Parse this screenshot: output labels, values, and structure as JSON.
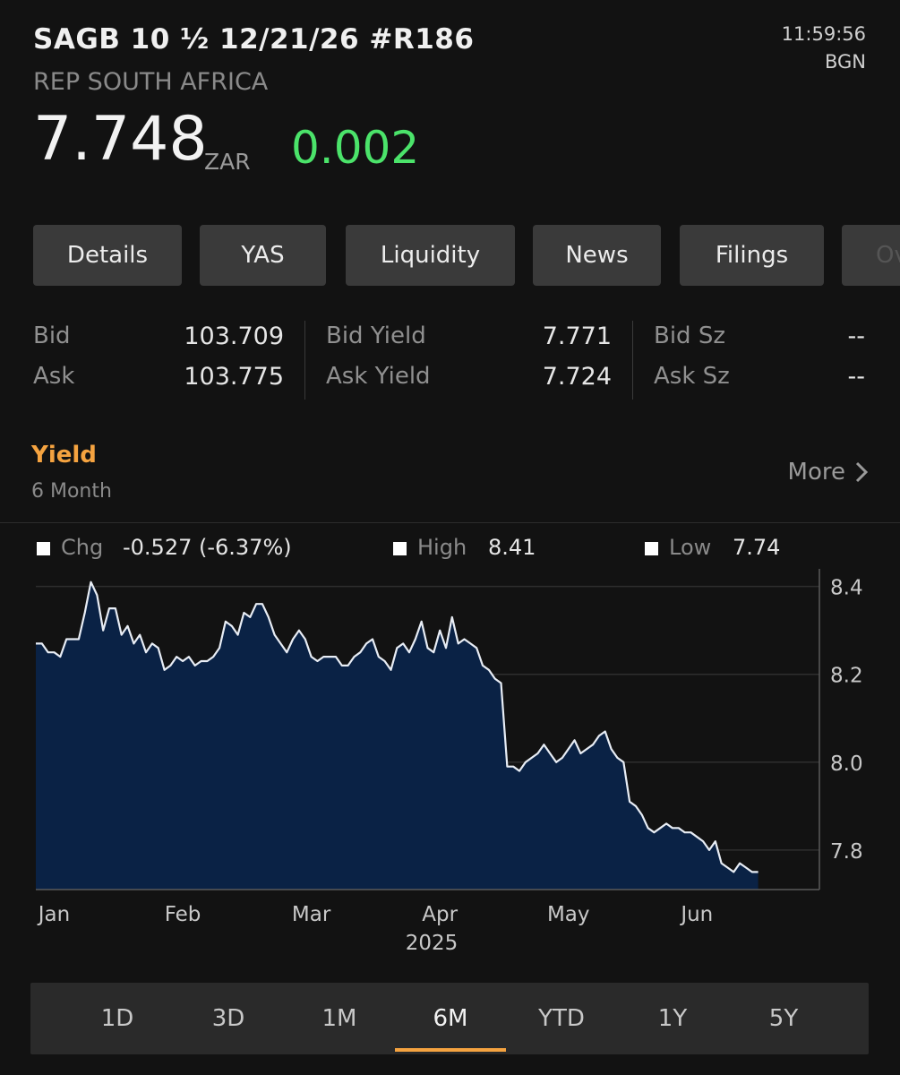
{
  "header": {
    "title": "SAGB 10 ½  12/21/26 #R186",
    "issuer": "REP SOUTH AFRICA",
    "time": "11:59:56",
    "source": "BGN",
    "price": "7.748",
    "currency": "ZAR",
    "change": "0.002",
    "change_color": "#4be36a"
  },
  "tabs": [
    {
      "label": "Details"
    },
    {
      "label": "YAS"
    },
    {
      "label": "Liquidity"
    },
    {
      "label": "News"
    },
    {
      "label": "Filings"
    },
    {
      "label": "Ov"
    }
  ],
  "quotes": {
    "bid_label": "Bid",
    "bid": "103.709",
    "ask_label": "Ask",
    "ask": "103.775",
    "bid_yield_label": "Bid Yield",
    "bid_yield": "7.771",
    "ask_yield_label": "Ask Yield",
    "ask_yield": "7.724",
    "bid_sz_label": "Bid Sz",
    "bid_sz": "--",
    "ask_sz_label": "Ask Sz",
    "ask_sz": "--"
  },
  "section": {
    "title": "Yield",
    "subtitle": "6 Month",
    "more_label": "More",
    "accent": "#f5a340"
  },
  "stats": {
    "chg_label": "Chg",
    "chg_value": "-0.527 (-6.37%)",
    "high_label": "High",
    "high_value": "8.41",
    "low_label": "Low",
    "low_value": "7.74"
  },
  "chart_data": {
    "type": "area",
    "x_tick_labels": [
      "Jan",
      "Feb",
      "Mar",
      "Apr",
      "May",
      "Jun"
    ],
    "x_year_label": "2025",
    "y_tick_labels": [
      "8.4",
      "8.2",
      "8.0",
      "7.8"
    ],
    "ylim": [
      7.71,
      8.44
    ],
    "x_range": [
      0,
      128
    ],
    "grid": "horizontal",
    "fill_color": "#0a2245",
    "line_color": "#e8edf5",
    "series": [
      {
        "values": [
          8.27,
          8.27,
          8.25,
          8.25,
          8.24,
          8.28,
          8.28,
          8.28,
          8.34,
          8.41,
          8.38,
          8.3,
          8.35,
          8.35,
          8.29,
          8.31,
          8.27,
          8.29,
          8.25,
          8.27,
          8.26,
          8.21,
          8.22,
          8.24,
          8.23,
          8.24,
          8.22,
          8.23,
          8.23,
          8.24,
          8.26,
          8.32,
          8.31,
          8.29,
          8.34,
          8.33,
          8.36,
          8.36,
          8.33,
          8.29,
          8.27,
          8.25,
          8.28,
          8.3,
          8.28,
          8.24,
          8.23,
          8.24,
          8.24,
          8.24,
          8.22,
          8.22,
          8.24,
          8.25,
          8.27,
          8.28,
          8.24,
          8.23,
          8.21,
          8.26,
          8.27,
          8.25,
          8.28,
          8.32,
          8.26,
          8.25,
          8.3,
          8.26,
          8.33,
          8.27,
          8.28,
          8.27,
          8.26,
          8.22,
          8.21,
          8.19,
          8.18,
          7.99,
          7.99,
          7.98,
          8.0,
          8.01,
          8.02,
          8.04,
          8.02,
          8.0,
          8.01,
          8.03,
          8.05,
          8.02,
          8.03,
          8.04,
          8.06,
          8.07,
          8.03,
          8.01,
          8.0,
          7.91,
          7.9,
          7.88,
          7.85,
          7.84,
          7.85,
          7.86,
          7.85,
          7.85,
          7.84,
          7.84,
          7.83,
          7.82,
          7.8,
          7.82,
          7.77,
          7.76,
          7.75,
          7.77,
          7.76,
          7.75,
          7.75
        ]
      }
    ]
  },
  "periods": [
    {
      "label": "1D"
    },
    {
      "label": "3D"
    },
    {
      "label": "1M"
    },
    {
      "label": "6M"
    },
    {
      "label": "YTD"
    },
    {
      "label": "1Y"
    },
    {
      "label": "5Y"
    }
  ],
  "active_period": "6M"
}
